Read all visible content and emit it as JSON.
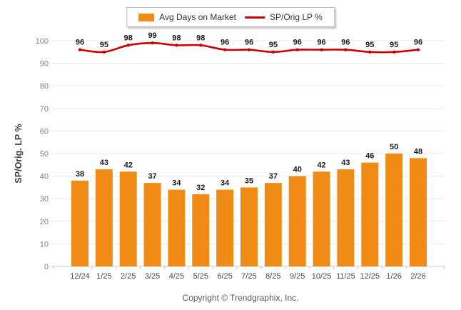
{
  "legend": {
    "items": [
      {
        "label": "Avg Days on Market",
        "type": "bar",
        "color": "#F08C16"
      },
      {
        "label": "SP/Orig LP %",
        "type": "line",
        "color": "#CC0000"
      }
    ]
  },
  "chart_data": {
    "type": "bar+line",
    "categories": [
      "12/24",
      "1/25",
      "2/25",
      "3/25",
      "4/25",
      "5/25",
      "6/25",
      "7/25",
      "8/25",
      "9/25",
      "10/25",
      "11/25",
      "12/25",
      "1/26",
      "2/26"
    ],
    "series": [
      {
        "name": "Avg Days on Market",
        "type": "bar",
        "color": "#F08C16",
        "values": [
          38,
          43,
          42,
          37,
          34,
          32,
          34,
          35,
          37,
          40,
          42,
          43,
          46,
          50,
          48
        ]
      },
      {
        "name": "SP/Orig LP %",
        "type": "line",
        "color": "#CC0000",
        "values": [
          96,
          95,
          98,
          99,
          98,
          98,
          96,
          96,
          95,
          96,
          96,
          96,
          95,
          95,
          96
        ]
      }
    ],
    "title": "",
    "xlabel": "",
    "ylabel": "SP/Orig. LP %",
    "ylim": [
      0,
      100
    ],
    "yticks": [
      0,
      10,
      20,
      30,
      40,
      50,
      60,
      70,
      80,
      90,
      100
    ],
    "grid": true,
    "legend_position": "top-center",
    "data_labels": true
  },
  "colors": {
    "bar": "#F08C16",
    "line": "#CC0000",
    "grid": "#e8e8e8",
    "axis": "#c9c9c9",
    "y_tick_label": "#7f7f7f",
    "x_tick_label": "#3f4a58",
    "value_label": "#1a1a1a",
    "axis_title": "#404040"
  },
  "footer": {
    "copyright": "Copyright © Trendgraphix, Inc."
  }
}
